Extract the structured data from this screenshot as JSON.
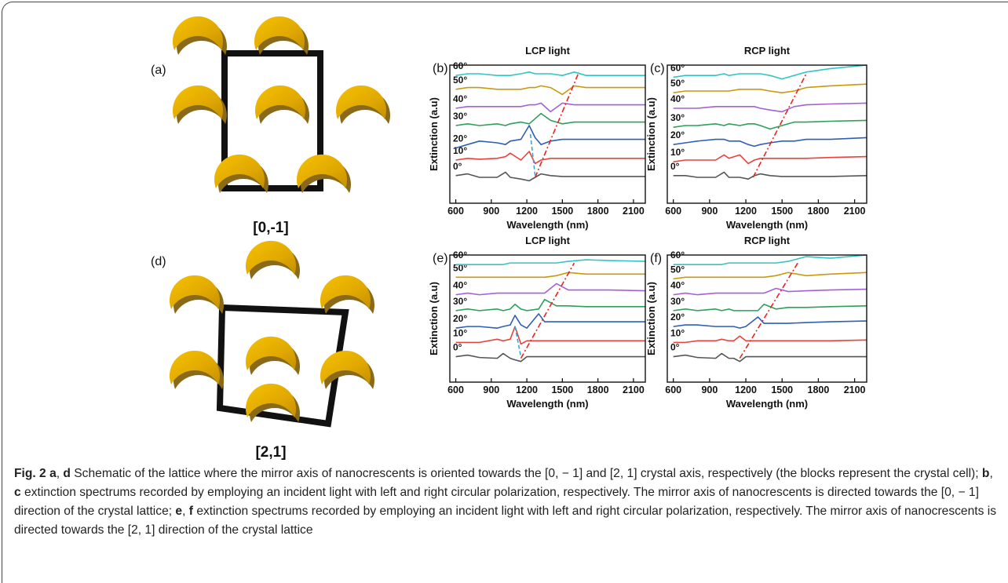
{
  "figure": {
    "schematics": [
      {
        "panel_label": "(a)",
        "direction": "[0,-1]"
      },
      {
        "panel_label": "(d)",
        "direction": "[2,1]"
      }
    ],
    "caption": [
      {
        "text": "Fig. 2",
        "bold": true
      },
      {
        "text": " a",
        "bold": true
      },
      {
        "text": ", ",
        "bold": false
      },
      {
        "text": "d",
        "bold": true
      },
      {
        "text": " Schematic of the lattice where the mirror axis of nanocrescents is oriented towards the [0, − 1] and [2, 1] crystal axis, respectively (the blocks represent the crystal cell); ",
        "bold": false
      },
      {
        "text": "b",
        "bold": true
      },
      {
        "text": ", ",
        "bold": false
      },
      {
        "text": "c",
        "bold": true
      },
      {
        "text": " extinction spectrums recorded by employing an incident light with left and right circular polarization, respectively. The mirror axis of nanocrescents is directed towards the [0, − 1] direction of the crystal lattice; ",
        "bold": false
      },
      {
        "text": "e",
        "bold": true
      },
      {
        "text": ", ",
        "bold": false
      },
      {
        "text": "f",
        "bold": true
      },
      {
        "text": " extinction spectrums recorded by employing an incident light with left and right circular polarization, respectively. The mirror axis of nanocrescents is directed towards the [2, 1] direction of the crystal lattice",
        "bold": false
      }
    ]
  },
  "chart_data": [
    {
      "type": "line",
      "panel_label": "(b)",
      "title": "LCP light",
      "x_label": "Wavelength (nm)",
      "y_label": "Extinction (a.u)",
      "xlim": [
        550,
        2200
      ],
      "ylim": [
        0,
        8
      ],
      "xticks": [
        600,
        900,
        1200,
        1500,
        1800,
        2100
      ],
      "x": [
        600,
        700,
        800,
        950,
        1020,
        1060,
        1150,
        1220,
        1270,
        1320,
        1400,
        1500,
        1600,
        1700,
        1900,
        2200
      ],
      "series": [
        {
          "name": "0°",
          "color": "#555555",
          "values": [
            1.6,
            1.7,
            1.5,
            1.5,
            1.8,
            1.5,
            1.4,
            1.3,
            1.5,
            1.7,
            1.6,
            1.55,
            1.55,
            1.55,
            1.55,
            1.55
          ]
        },
        {
          "name": "10°",
          "color": "#e8423c",
          "values": [
            2.5,
            2.6,
            2.55,
            2.6,
            2.7,
            2.9,
            2.5,
            3.0,
            2.3,
            2.5,
            2.6,
            2.6,
            2.6,
            2.6,
            2.6,
            2.6
          ]
        },
        {
          "name": "20°",
          "color": "#2f5fb4",
          "values": [
            3.2,
            3.4,
            3.6,
            3.5,
            3.4,
            3.6,
            3.7,
            4.5,
            3.8,
            3.4,
            3.6,
            3.7,
            3.7,
            3.7,
            3.7,
            3.7
          ]
        },
        {
          "name": "30°",
          "color": "#2ca05a",
          "values": [
            4.5,
            4.6,
            4.5,
            4.6,
            4.5,
            4.6,
            4.7,
            4.6,
            4.9,
            5.2,
            4.8,
            4.6,
            4.7,
            4.7,
            4.7,
            4.7
          ]
        },
        {
          "name": "40°",
          "color": "#a461d6",
          "values": [
            5.5,
            5.6,
            5.6,
            5.6,
            5.6,
            5.6,
            5.6,
            5.7,
            5.7,
            5.8,
            5.3,
            5.8,
            5.7,
            5.7,
            5.7,
            5.7
          ]
        },
        {
          "name": "50°",
          "color": "#c99a0e",
          "values": [
            6.6,
            6.7,
            6.7,
            6.6,
            6.6,
            6.6,
            6.6,
            6.7,
            6.7,
            6.8,
            6.7,
            6.3,
            6.8,
            6.7,
            6.7,
            6.7
          ]
        },
        {
          "name": "60°",
          "color": "#35c4c4",
          "values": [
            7.4,
            7.5,
            7.5,
            7.4,
            7.4,
            7.4,
            7.5,
            7.6,
            7.5,
            7.5,
            7.5,
            7.4,
            7.6,
            7.4,
            7.4,
            7.4
          ]
        }
      ],
      "guides": [
        {
          "color": "#e8231e",
          "dash": "dash-dot",
          "x": [
            1270,
            1640
          ],
          "y": [
            1.5,
            7.6
          ]
        },
        {
          "color": "#35a8d8",
          "dash": "dash",
          "x": [
            1230,
            1270
          ],
          "y": [
            4.0,
            1.6
          ]
        }
      ]
    },
    {
      "type": "line",
      "panel_label": "(c)",
      "title": "RCP light",
      "x_label": "Wavelength (nm)",
      "y_label": "Extinction (a.u)",
      "xlim": [
        550,
        2200
      ],
      "ylim": [
        0,
        8
      ],
      "xticks": [
        600,
        900,
        1200,
        1500,
        1800,
        2100
      ],
      "x": [
        600,
        700,
        800,
        950,
        1020,
        1060,
        1150,
        1220,
        1270,
        1320,
        1400,
        1500,
        1600,
        1700,
        1900,
        2200
      ],
      "series": [
        {
          "name": "0°",
          "color": "#555555",
          "values": [
            1.6,
            1.6,
            1.5,
            1.5,
            1.8,
            1.5,
            1.5,
            1.4,
            1.6,
            1.7,
            1.6,
            1.55,
            1.55,
            1.55,
            1.55,
            1.6
          ]
        },
        {
          "name": "10°",
          "color": "#e8423c",
          "values": [
            2.4,
            2.5,
            2.5,
            2.5,
            2.8,
            2.6,
            2.8,
            2.3,
            2.5,
            2.6,
            2.6,
            2.6,
            2.6,
            2.6,
            2.65,
            2.7
          ]
        },
        {
          "name": "20°",
          "color": "#2f5fb4",
          "values": [
            3.4,
            3.5,
            3.6,
            3.7,
            3.7,
            3.6,
            3.6,
            3.4,
            3.3,
            3.4,
            3.5,
            3.6,
            3.6,
            3.7,
            3.7,
            3.8
          ]
        },
        {
          "name": "30°",
          "color": "#2ca05a",
          "values": [
            4.4,
            4.5,
            4.5,
            4.6,
            4.5,
            4.6,
            4.5,
            4.6,
            4.6,
            4.5,
            4.3,
            4.5,
            4.7,
            4.7,
            4.75,
            4.8
          ]
        },
        {
          "name": "40°",
          "color": "#a461d6",
          "values": [
            5.5,
            5.5,
            5.5,
            5.6,
            5.6,
            5.6,
            5.6,
            5.6,
            5.6,
            5.5,
            5.4,
            5.3,
            5.6,
            5.7,
            5.75,
            5.8
          ]
        },
        {
          "name": "50°",
          "color": "#c99a0e",
          "values": [
            6.4,
            6.5,
            6.5,
            6.5,
            6.5,
            6.5,
            6.6,
            6.6,
            6.6,
            6.6,
            6.5,
            6.4,
            6.5,
            6.7,
            6.8,
            6.9
          ]
        },
        {
          "name": "60°",
          "color": "#35c4c4",
          "values": [
            7.3,
            7.4,
            7.4,
            7.4,
            7.5,
            7.4,
            7.5,
            7.5,
            7.5,
            7.5,
            7.4,
            7.2,
            7.4,
            7.6,
            7.8,
            8.0
          ]
        }
      ],
      "guides": [
        {
          "color": "#e8231e",
          "dash": "dash-dot",
          "x": [
            1260,
            1700
          ],
          "y": [
            1.5,
            7.5
          ]
        }
      ]
    },
    {
      "type": "line",
      "panel_label": "(e)",
      "title": "LCP light",
      "x_label": "Wavelength (nm)",
      "y_label": "Extinction (a.u)",
      "xlim": [
        550,
        2200
      ],
      "ylim": [
        0,
        8
      ],
      "xticks": [
        600,
        900,
        1200,
        1500,
        1800,
        2100
      ],
      "x": [
        600,
        700,
        800,
        950,
        1000,
        1060,
        1100,
        1150,
        1200,
        1300,
        1350,
        1450,
        1550,
        1700,
        1900,
        2200
      ],
      "series": [
        {
          "name": "0°",
          "color": "#555555",
          "values": [
            1.6,
            1.7,
            1.55,
            1.5,
            1.8,
            1.5,
            1.4,
            1.3,
            1.6,
            1.6,
            1.6,
            1.6,
            1.6,
            1.6,
            1.6,
            1.6
          ]
        },
        {
          "name": "10°",
          "color": "#e8423c",
          "values": [
            2.5,
            2.5,
            2.5,
            2.7,
            2.6,
            2.7,
            3.5,
            2.4,
            2.6,
            2.6,
            2.6,
            2.6,
            2.6,
            2.6,
            2.6,
            2.6
          ]
        },
        {
          "name": "20°",
          "color": "#2f5fb4",
          "values": [
            3.4,
            3.5,
            3.5,
            3.4,
            3.5,
            3.6,
            4.2,
            3.6,
            3.4,
            4.3,
            3.8,
            3.8,
            3.8,
            3.8,
            3.8,
            3.8
          ]
        },
        {
          "name": "30°",
          "color": "#2ca05a",
          "values": [
            4.5,
            4.6,
            4.5,
            4.6,
            4.5,
            4.6,
            4.9,
            4.6,
            4.5,
            4.6,
            5.2,
            4.8,
            4.8,
            4.75,
            4.75,
            4.75
          ]
        },
        {
          "name": "40°",
          "color": "#a461d6",
          "values": [
            5.5,
            5.6,
            5.5,
            5.6,
            5.6,
            5.6,
            5.6,
            5.6,
            5.6,
            5.6,
            5.6,
            6.2,
            5.8,
            5.8,
            5.8,
            5.75
          ]
        },
        {
          "name": "50°",
          "color": "#c99a0e",
          "values": [
            6.6,
            6.6,
            6.6,
            6.6,
            6.6,
            6.6,
            6.6,
            6.6,
            6.6,
            6.6,
            6.6,
            6.7,
            6.9,
            6.8,
            6.8,
            6.8
          ]
        },
        {
          "name": "60°",
          "color": "#35c4c4",
          "values": [
            7.4,
            7.4,
            7.4,
            7.4,
            7.4,
            7.5,
            7.5,
            7.5,
            7.5,
            7.5,
            7.5,
            7.5,
            7.6,
            7.7,
            7.65,
            7.6
          ]
        }
      ],
      "guides": [
        {
          "color": "#e8231e",
          "dash": "dash-dot",
          "x": [
            1150,
            1600
          ],
          "y": [
            1.5,
            7.5
          ]
        },
        {
          "color": "#35a8d8",
          "dash": "dash",
          "x": [
            1100,
            1150
          ],
          "y": [
            3.5,
            1.6
          ]
        }
      ]
    },
    {
      "type": "line",
      "panel_label": "(f)",
      "title": "RCP light",
      "x_label": "Wavelength (nm)",
      "y_label": "Extinction (a.u)",
      "xlim": [
        550,
        2200
      ],
      "ylim": [
        0,
        8
      ],
      "xticks": [
        600,
        900,
        1200,
        1500,
        1800,
        2100
      ],
      "x": [
        600,
        700,
        800,
        950,
        1000,
        1060,
        1100,
        1150,
        1200,
        1300,
        1350,
        1450,
        1550,
        1700,
        1900,
        2200
      ],
      "series": [
        {
          "name": "0°",
          "color": "#555555",
          "values": [
            1.6,
            1.7,
            1.55,
            1.5,
            1.8,
            1.5,
            1.5,
            1.3,
            1.6,
            1.6,
            1.6,
            1.6,
            1.6,
            1.6,
            1.6,
            1.6
          ]
        },
        {
          "name": "10°",
          "color": "#e8423c",
          "values": [
            2.5,
            2.5,
            2.6,
            2.6,
            2.7,
            2.6,
            2.6,
            2.9,
            2.6,
            2.6,
            2.6,
            2.6,
            2.6,
            2.6,
            2.6,
            2.65
          ]
        },
        {
          "name": "20°",
          "color": "#2f5fb4",
          "values": [
            3.5,
            3.6,
            3.6,
            3.5,
            3.5,
            3.5,
            3.5,
            3.4,
            3.5,
            4.1,
            3.7,
            3.7,
            3.7,
            3.75,
            3.8,
            3.85
          ]
        },
        {
          "name": "30°",
          "color": "#2ca05a",
          "values": [
            4.5,
            4.6,
            4.5,
            4.6,
            4.5,
            4.6,
            4.5,
            4.5,
            4.5,
            4.5,
            4.9,
            4.6,
            4.7,
            4.7,
            4.75,
            4.8
          ]
        },
        {
          "name": "40°",
          "color": "#a461d6",
          "values": [
            5.5,
            5.6,
            5.5,
            5.6,
            5.6,
            5.6,
            5.6,
            5.6,
            5.6,
            5.6,
            5.6,
            5.9,
            5.7,
            5.75,
            5.8,
            5.85
          ]
        },
        {
          "name": "50°",
          "color": "#c99a0e",
          "values": [
            6.5,
            6.6,
            6.6,
            6.6,
            6.6,
            6.6,
            6.6,
            6.6,
            6.6,
            6.6,
            6.6,
            6.7,
            6.9,
            6.7,
            6.8,
            6.9
          ]
        },
        {
          "name": "60°",
          "color": "#35c4c4",
          "values": [
            7.4,
            7.4,
            7.4,
            7.4,
            7.4,
            7.5,
            7.5,
            7.5,
            7.5,
            7.5,
            7.5,
            7.5,
            7.6,
            7.9,
            7.8,
            8.0
          ]
        }
      ],
      "guides": [
        {
          "color": "#e8231e",
          "dash": "dash-dot",
          "x": [
            1150,
            1630
          ],
          "y": [
            1.5,
            7.5
          ]
        }
      ]
    }
  ]
}
